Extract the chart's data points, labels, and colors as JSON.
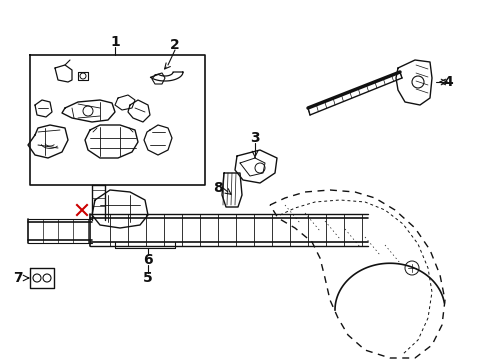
{
  "bg_color": "#ffffff",
  "line_color": "#111111",
  "red_color": "#cc0000",
  "figsize": [
    4.89,
    3.6
  ],
  "dpi": 100,
  "xlim": [
    0,
    489
  ],
  "ylim": [
    0,
    360
  ]
}
